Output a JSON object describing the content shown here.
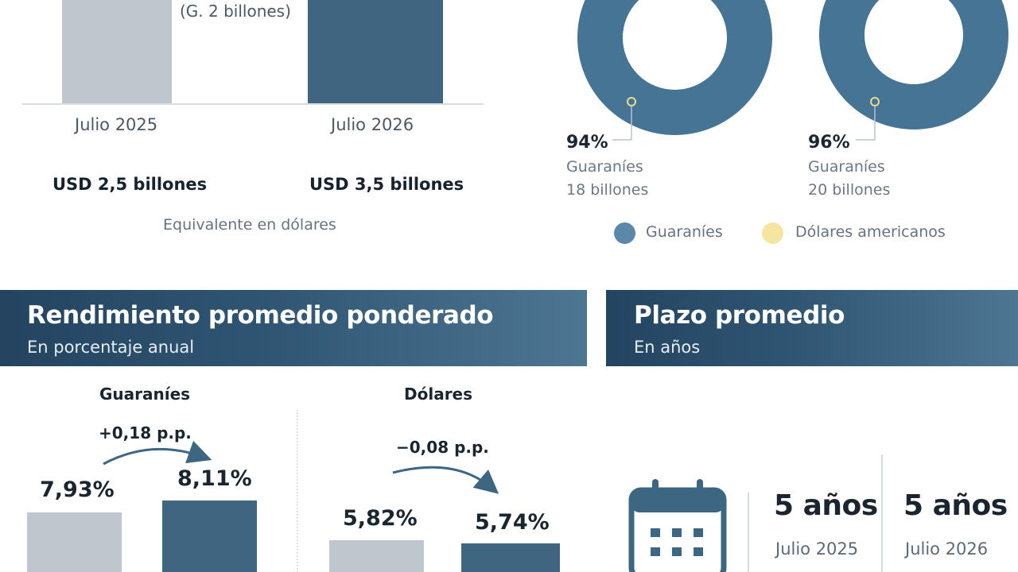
{
  "debt_stock": {
    "note": "(G. 2 billones)",
    "periods": [
      "Julio 2025",
      "Julio 2026"
    ],
    "usd_values": [
      "USD 2,5 billones",
      "USD 3,5 billones"
    ],
    "caption": "Equivalente en dólares"
  },
  "currency_composition": {
    "donuts": [
      {
        "share_label": "94%",
        "currency": "Guaraníes",
        "amount": "18 billones",
        "share": 0.94
      },
      {
        "share_label": "96%",
        "currency": "Guaraníes",
        "amount": "20 billones",
        "share": 0.96
      }
    ],
    "legend": [
      {
        "label": "Guaraníes",
        "color": "#467495"
      },
      {
        "label": "Dólares americanos",
        "color": "#f6e5a0"
      }
    ]
  },
  "yield_section": {
    "title": "Rendimiento promedio ponderado",
    "subtitle": "En porcentaje anual",
    "groups": [
      {
        "name": "Guaraníes",
        "delta": "+0,18 p.p.",
        "before": "7,93%",
        "after": "8,11%"
      },
      {
        "name": "Dólares",
        "delta": "−0,08 p.p.",
        "before": "5,82%",
        "after": "5,74%"
      }
    ]
  },
  "term_section": {
    "title": "Plazo promedio",
    "subtitle": "En años",
    "icon": "calendar-icon",
    "values": [
      {
        "value": "5 años",
        "period": "Julio 2025"
      },
      {
        "value": "5 años",
        "period": "Julio 2026"
      }
    ]
  },
  "colors": {
    "light_bar": "#bfc6ce",
    "dark_bar": "#3f6580",
    "banner": "#2f5572"
  }
}
